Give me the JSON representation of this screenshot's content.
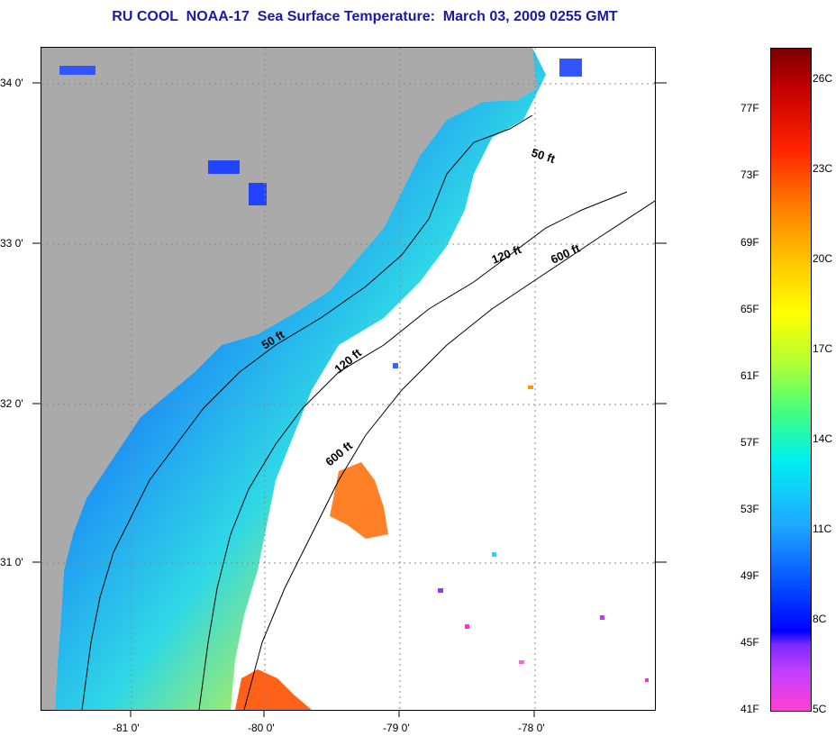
{
  "title": "RU COOL  NOAA-17  Sea Surface Temperature:  March 03, 2009 0255 GMT",
  "map": {
    "lat_labels": [
      "34 0'",
      "33 0'",
      "32 0'",
      "31 0'"
    ],
    "lon_labels": [
      "-81 0'",
      "-80 0'",
      "-79 0'",
      "-78 0'"
    ],
    "contour_labels": [
      "50 ft",
      "120 ft",
      "600 ft",
      "50 ft",
      "120 ft",
      "600 ft"
    ]
  },
  "colorbar": {
    "fahrenheit": [
      "77F",
      "73F",
      "69F",
      "65F",
      "61F",
      "57F",
      "53F",
      "49F",
      "45F",
      "41F"
    ],
    "celsius": [
      "26C",
      "23C",
      "20C",
      "17C",
      "14C",
      "11C",
      "8C",
      "5C"
    ]
  },
  "colors": {
    "land": "#aaaaaa",
    "title": "#1a1aa8"
  }
}
